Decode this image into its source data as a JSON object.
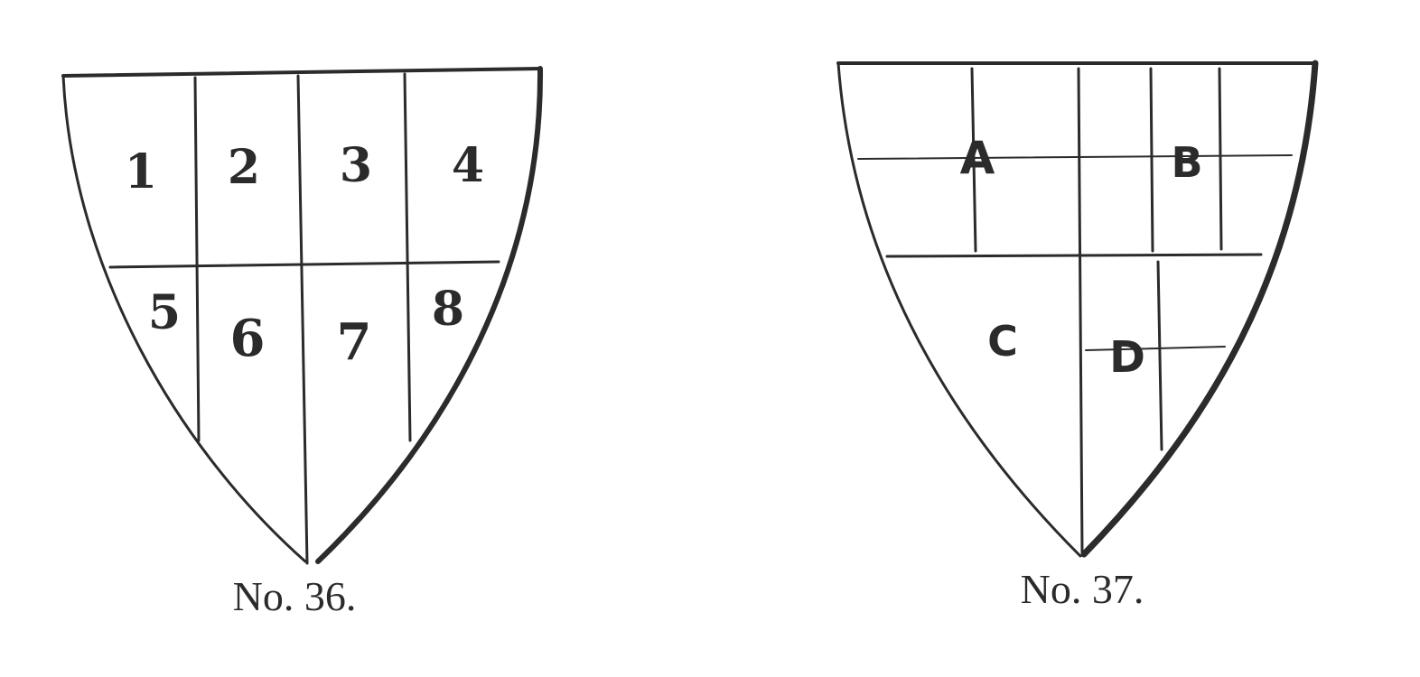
{
  "figures": [
    {
      "caption": "No. 36.",
      "quarter_labels": [
        "1",
        "2",
        "3",
        "4",
        "5",
        "6",
        "7",
        "8"
      ]
    },
    {
      "caption": "No. 37.",
      "quarter_labels": [
        "A",
        "B",
        "C",
        "D"
      ]
    }
  ]
}
